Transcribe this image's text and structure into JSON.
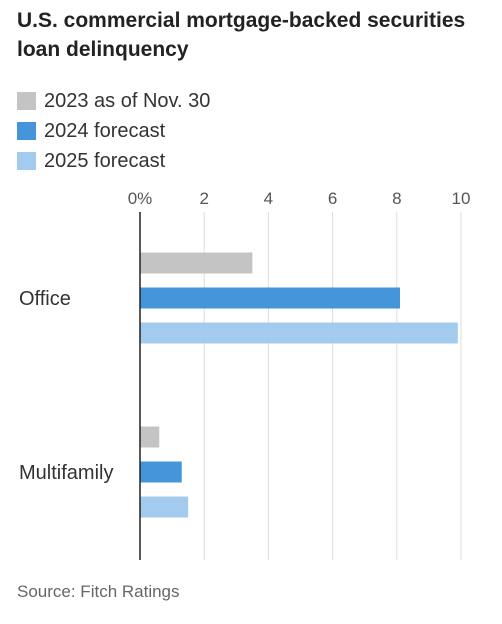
{
  "title": "U.S. commercial mortgage-backed securities loan delinquency",
  "source": "Source: Fitch Ratings",
  "chart_data": {
    "type": "bar",
    "orientation": "horizontal",
    "title": "U.S. commercial mortgage-backed securities loan delinquency",
    "categories": [
      "Office",
      "Multifamily"
    ],
    "series": [
      {
        "name": "2023 as of Nov. 30",
        "color": "#c4c4c4",
        "values": [
          3.5,
          0.6
        ]
      },
      {
        "name": "2024 forecast",
        "color": "#4495d9",
        "values": [
          8.1,
          1.3
        ]
      },
      {
        "name": "2025 forecast",
        "color": "#a3cbee",
        "values": [
          9.9,
          1.5
        ]
      }
    ],
    "xlim": [
      0,
      10
    ],
    "xticks": [
      0,
      2,
      4,
      6,
      8,
      10
    ],
    "xtick_labels": [
      "0%",
      "2",
      "4",
      "6",
      "8",
      "10"
    ],
    "grid": true,
    "legend_position": "top-left"
  }
}
